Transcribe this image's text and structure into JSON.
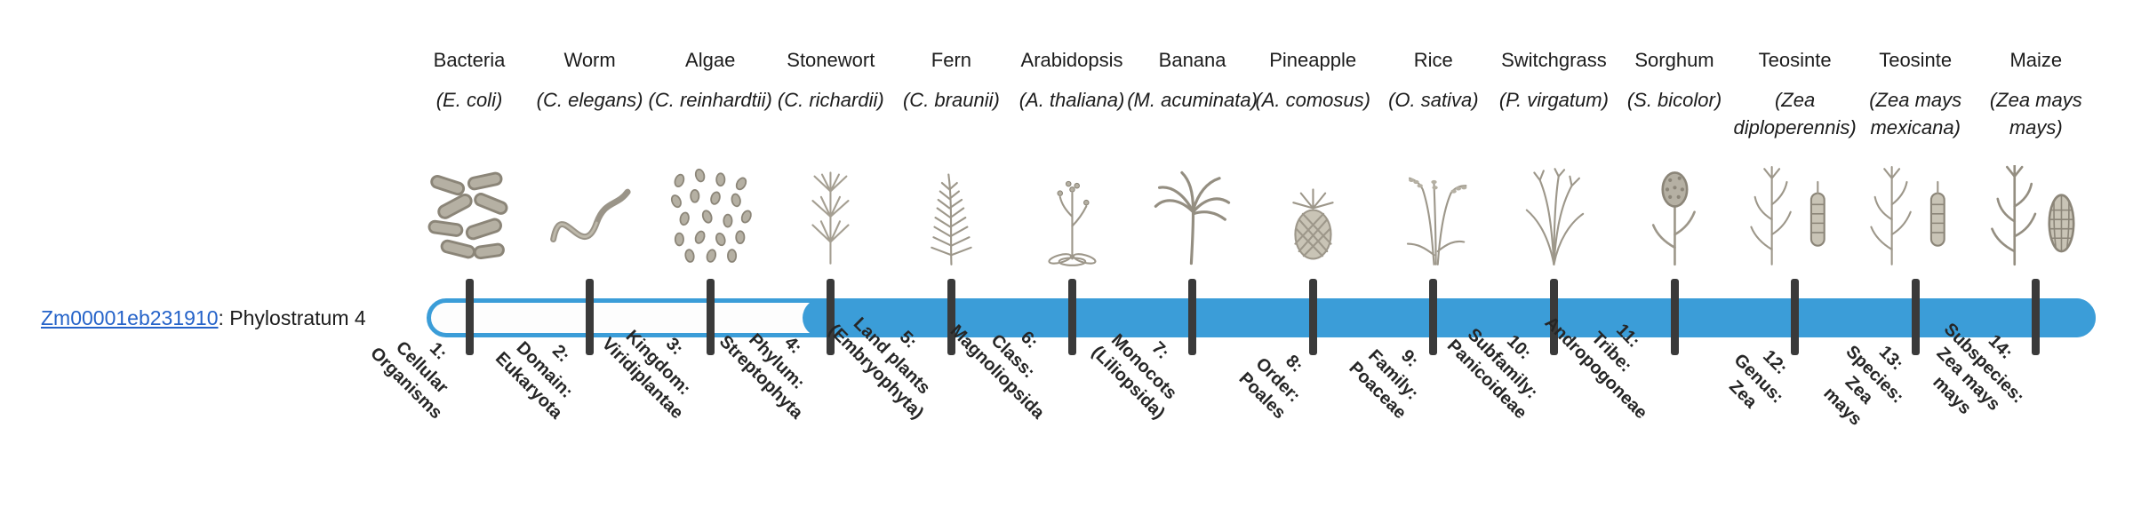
{
  "gene": {
    "id": "Zm00001eb231910",
    "suffix": ": Phylostratum 4"
  },
  "timeline": {
    "filled_from_stratum": 4,
    "total_strata": 14
  },
  "colors": {
    "bar_blue": "#3b9dd8",
    "tick_dark": "#3a3a3a",
    "link_blue": "#2563c9",
    "illustration_gray": "#9d978a"
  },
  "organisms": [
    {
      "common": "Bacteria",
      "scientific": "(E. coli)",
      "icon": "bacteria-icon",
      "stratum": "1:\nCellular\nOrganisms"
    },
    {
      "common": "Worm",
      "scientific": "(C. elegans)",
      "icon": "worm-icon",
      "stratum": "2:\nDomain:\nEukaryota"
    },
    {
      "common": "Algae",
      "scientific": "(C. reinhardtii)",
      "icon": "algae-icon",
      "stratum": "3:\nKingdom:\nViridiplantae"
    },
    {
      "common": "Stonewort",
      "scientific": "(C. richardii)",
      "icon": "stonewort-icon",
      "stratum": "4:\nPhylum:\nStreptophyta"
    },
    {
      "common": "Fern",
      "scientific": "(C. braunii)",
      "icon": "fern-icon",
      "stratum": "5:\nLand plants\n(Embryophyta)"
    },
    {
      "common": "Arabidopsis",
      "scientific": "(A. thaliana)",
      "icon": "arabidopsis-icon",
      "stratum": "6:\nClass:\nMagnoliopsida"
    },
    {
      "common": "Banana",
      "scientific": "(M. acuminata)",
      "icon": "banana-icon",
      "stratum": "7:\nMonocots\n(Liliopsida)"
    },
    {
      "common": "Pineapple",
      "scientific": "(A. comosus)",
      "icon": "pineapple-icon",
      "stratum": "8:\nOrder:\nPoales"
    },
    {
      "common": "Rice",
      "scientific": "(O. sativa)",
      "icon": "rice-icon",
      "stratum": "9:\nFamily:\nPoaceae"
    },
    {
      "common": "Switchgrass",
      "scientific": "(P. virgatum)",
      "icon": "switchgrass-icon",
      "stratum": "10:\nSubfamily:\nPanicoideae"
    },
    {
      "common": "Sorghum",
      "scientific": "(S. bicolor)",
      "icon": "sorghum-icon",
      "stratum": "11:\nTribe:\nAndropogoneae"
    },
    {
      "common": "Teosinte",
      "scientific": "(Zea diploperennis)",
      "icon": "teosinte-icon",
      "stratum": "12:\nGenus:\nZea"
    },
    {
      "common": "Teosinte",
      "scientific": "(Zea mays mexicana)",
      "icon": "teosinte-icon",
      "stratum": "13:\nSpecies:\nZea\nmays"
    },
    {
      "common": "Maize",
      "scientific": "(Zea mays mays)",
      "icon": "maize-icon",
      "stratum": "14:\nSubspecies:\nZea mays\nmays"
    }
  ]
}
